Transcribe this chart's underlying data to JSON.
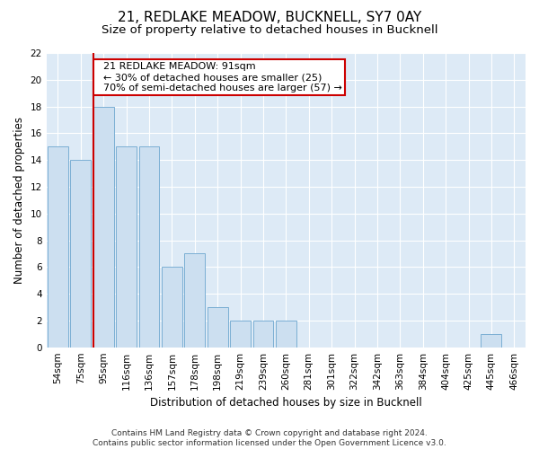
{
  "title1": "21, REDLAKE MEADOW, BUCKNELL, SY7 0AY",
  "title2": "Size of property relative to detached houses in Bucknell",
  "xlabel": "Distribution of detached houses by size in Bucknell",
  "ylabel": "Number of detached properties",
  "categories": [
    "54sqm",
    "75sqm",
    "95sqm",
    "116sqm",
    "136sqm",
    "157sqm",
    "178sqm",
    "198sqm",
    "219sqm",
    "239sqm",
    "260sqm",
    "281sqm",
    "301sqm",
    "322sqm",
    "342sqm",
    "363sqm",
    "384sqm",
    "404sqm",
    "425sqm",
    "445sqm",
    "466sqm"
  ],
  "values": [
    15,
    14,
    18,
    15,
    15,
    6,
    7,
    3,
    2,
    2,
    2,
    0,
    0,
    0,
    0,
    0,
    0,
    0,
    0,
    1,
    0
  ],
  "bar_color": "#ccdff0",
  "bar_edge_color": "#7bafd4",
  "red_line_index": 2,
  "red_line_color": "#cc0000",
  "annotation_text": "  21 REDLAKE MEADOW: 91sqm\n  ← 30% of detached houses are smaller (25)\n  70% of semi-detached houses are larger (57) →",
  "annotation_box_color": "#ffffff",
  "annotation_box_edge": "#cc0000",
  "ylim": [
    0,
    22
  ],
  "yticks": [
    0,
    2,
    4,
    6,
    8,
    10,
    12,
    14,
    16,
    18,
    20,
    22
  ],
  "footnote": "Contains HM Land Registry data © Crown copyright and database right 2024.\nContains public sector information licensed under the Open Government Licence v3.0.",
  "bg_color": "#ddeaf6",
  "fig_bg_color": "#ffffff",
  "grid_color": "#ffffff",
  "title1_fontsize": 11,
  "title2_fontsize": 9.5,
  "xlabel_fontsize": 8.5,
  "ylabel_fontsize": 8.5,
  "tick_fontsize": 7.5,
  "footnote_fontsize": 6.5,
  "annotation_fontsize": 8
}
